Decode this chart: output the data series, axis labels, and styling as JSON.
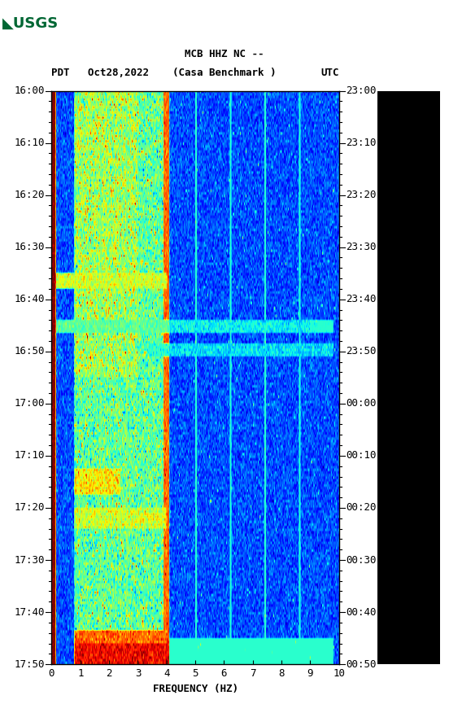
{
  "title_line1": "MCB HHZ NC --",
  "title_line2": "(Casa Benchmark )",
  "left_label": "PDT   Oct28,2022",
  "right_label": "UTC",
  "yticks_left": [
    "16:00",
    "16:10",
    "16:20",
    "16:30",
    "16:40",
    "16:50",
    "17:00",
    "17:10",
    "17:20",
    "17:30",
    "17:40",
    "17:50"
  ],
  "yticks_right": [
    "23:00",
    "23:10",
    "23:20",
    "23:30",
    "23:40",
    "23:50",
    "00:00",
    "00:10",
    "00:20",
    "00:30",
    "00:40",
    "00:50"
  ],
  "xlabel": "FREQUENCY (HZ)",
  "xticks": [
    0,
    1,
    2,
    3,
    4,
    5,
    6,
    7,
    8,
    9,
    10
  ],
  "freq_min": 0,
  "freq_max": 10,
  "time_steps": 220,
  "freq_steps": 500,
  "background_color": "#ffffff",
  "colormap": "jet",
  "fig_width": 5.52,
  "fig_height": 8.92,
  "dpi": 100,
  "usgs_logo_color": "#006633",
  "title_fontsize": 9,
  "label_fontsize": 9,
  "tick_fontsize": 9
}
